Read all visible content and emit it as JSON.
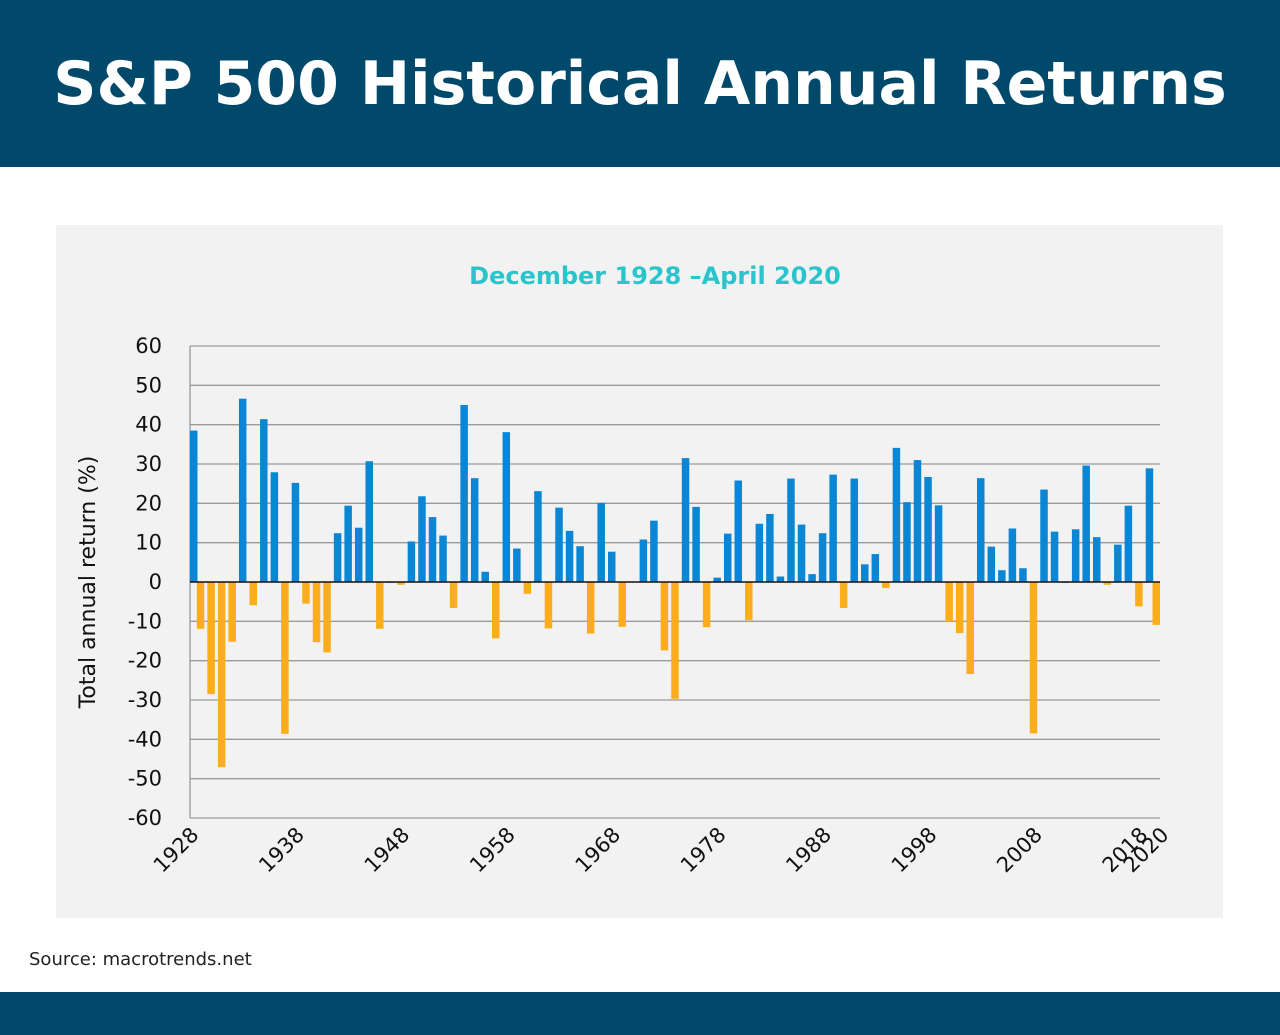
{
  "header": {
    "title": "S&P 500 Historical Annual Returns"
  },
  "source": "Source: macrotrends.net",
  "colors": {
    "header_bg": "#01496b",
    "positive": "#0a86d4",
    "negative": "#fbad1c",
    "subtitle": "#2bc4cc"
  },
  "chart_data": {
    "type": "bar",
    "title": "December 1928 –April 2020",
    "xlabel": "",
    "ylabel": "Total annual return (%)",
    "ylim": [
      -60,
      60
    ],
    "yticks": [
      60,
      50,
      40,
      30,
      20,
      10,
      0,
      -10,
      -20,
      -30,
      -40,
      -50,
      -60
    ],
    "xtick_labels": [
      "1928",
      "1938",
      "1948",
      "1958",
      "1968",
      "1978",
      "1988",
      "1998",
      "2008",
      "2018",
      "2020"
    ],
    "grid": true,
    "x": [
      1928,
      1929,
      1930,
      1931,
      1932,
      1933,
      1934,
      1935,
      1936,
      1937,
      1938,
      1939,
      1940,
      1941,
      1942,
      1943,
      1944,
      1945,
      1946,
      1947,
      1948,
      1949,
      1950,
      1951,
      1952,
      1953,
      1954,
      1955,
      1956,
      1957,
      1958,
      1959,
      1960,
      1961,
      1962,
      1963,
      1964,
      1965,
      1966,
      1967,
      1968,
      1969,
      1970,
      1971,
      1972,
      1973,
      1974,
      1975,
      1976,
      1977,
      1978,
      1979,
      1980,
      1981,
      1982,
      1983,
      1984,
      1985,
      1986,
      1987,
      1988,
      1989,
      1990,
      1991,
      1992,
      1993,
      1994,
      1995,
      1996,
      1997,
      1998,
      1999,
      2000,
      2001,
      2002,
      2003,
      2004,
      2005,
      2006,
      2007,
      2008,
      2009,
      2010,
      2011,
      2012,
      2013,
      2014,
      2015,
      2016,
      2017,
      2018,
      2019,
      2020
    ],
    "values": [
      38.5,
      -11.9,
      -28.5,
      -47.1,
      -15.2,
      46.6,
      -5.9,
      41.4,
      27.9,
      -38.6,
      25.2,
      -5.5,
      -15.3,
      -17.9,
      12.4,
      19.4,
      13.8,
      30.7,
      -11.9,
      0.0,
      -0.7,
      10.3,
      21.8,
      16.5,
      11.8,
      -6.6,
      45.0,
      26.4,
      2.6,
      -14.3,
      38.1,
      8.5,
      -3.0,
      23.1,
      -11.8,
      18.9,
      13.0,
      9.1,
      -13.1,
      20.1,
      7.7,
      -11.4,
      0.1,
      10.8,
      15.6,
      -17.4,
      -29.7,
      31.5,
      19.1,
      -11.5,
      1.1,
      12.3,
      25.8,
      -9.7,
      14.8,
      17.3,
      1.4,
      26.3,
      14.6,
      2.0,
      12.4,
      27.3,
      -6.6,
      26.3,
      4.5,
      7.1,
      -1.5,
      34.1,
      20.3,
      31.0,
      26.7,
      19.5,
      -10.1,
      -13.0,
      -23.4,
      26.4,
      9.0,
      3.0,
      13.6,
      3.5,
      -38.5,
      23.5,
      12.8,
      0.0,
      13.4,
      29.6,
      11.4,
      -0.7,
      9.5,
      19.4,
      -6.2,
      28.9,
      -10.9
    ]
  }
}
